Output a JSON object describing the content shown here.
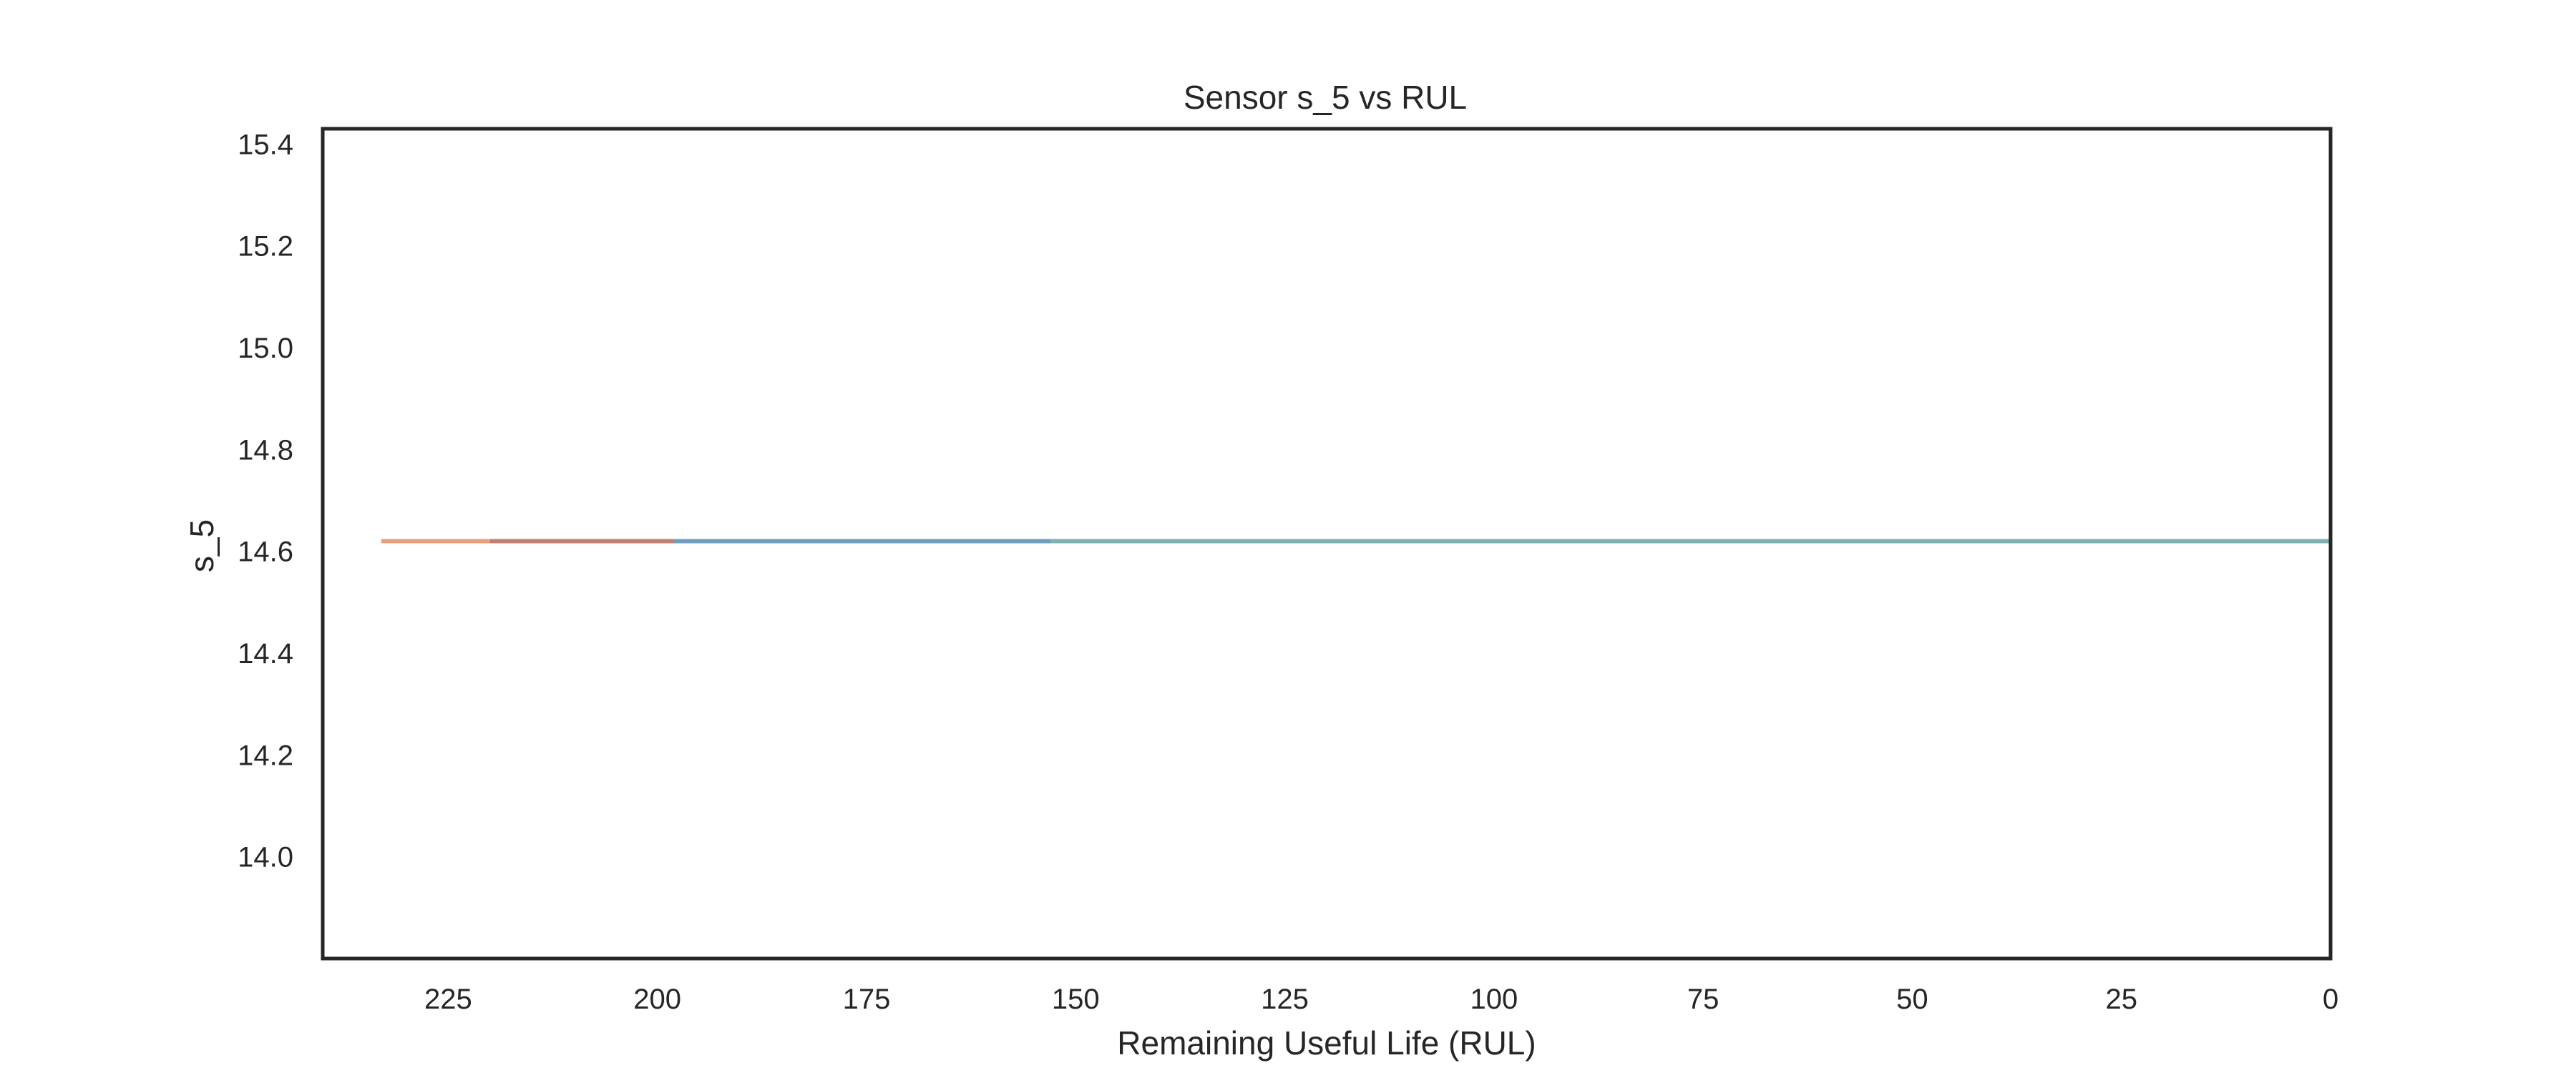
{
  "chart_data": {
    "type": "line",
    "title": "Sensor s_5 vs RUL",
    "xlabel": "Remaining Useful Life (RUL)",
    "ylabel": "s_5",
    "xlim": [
      240,
      0
    ],
    "ylim": [
      13.8,
      15.43
    ],
    "x_inverted": true,
    "grid": false,
    "x_ticks": [
      225,
      200,
      175,
      150,
      125,
      100,
      75,
      50,
      25,
      0
    ],
    "y_ticks": [
      14.0,
      14.2,
      14.4,
      14.6,
      14.8,
      15.0,
      15.2,
      15.4
    ],
    "series": [
      {
        "color": "#e8a07c",
        "x": [
          233,
          0
        ],
        "y": [
          14.62,
          14.62
        ]
      },
      {
        "color": "#c08070",
        "x": [
          220,
          0
        ],
        "y": [
          14.62,
          14.62
        ]
      },
      {
        "color": "#6f9fbf",
        "x": [
          198,
          0
        ],
        "y": [
          14.62,
          14.62
        ]
      },
      {
        "color": "#7fb0b0",
        "x": [
          153,
          0
        ],
        "y": [
          14.62,
          14.62
        ]
      }
    ]
  }
}
